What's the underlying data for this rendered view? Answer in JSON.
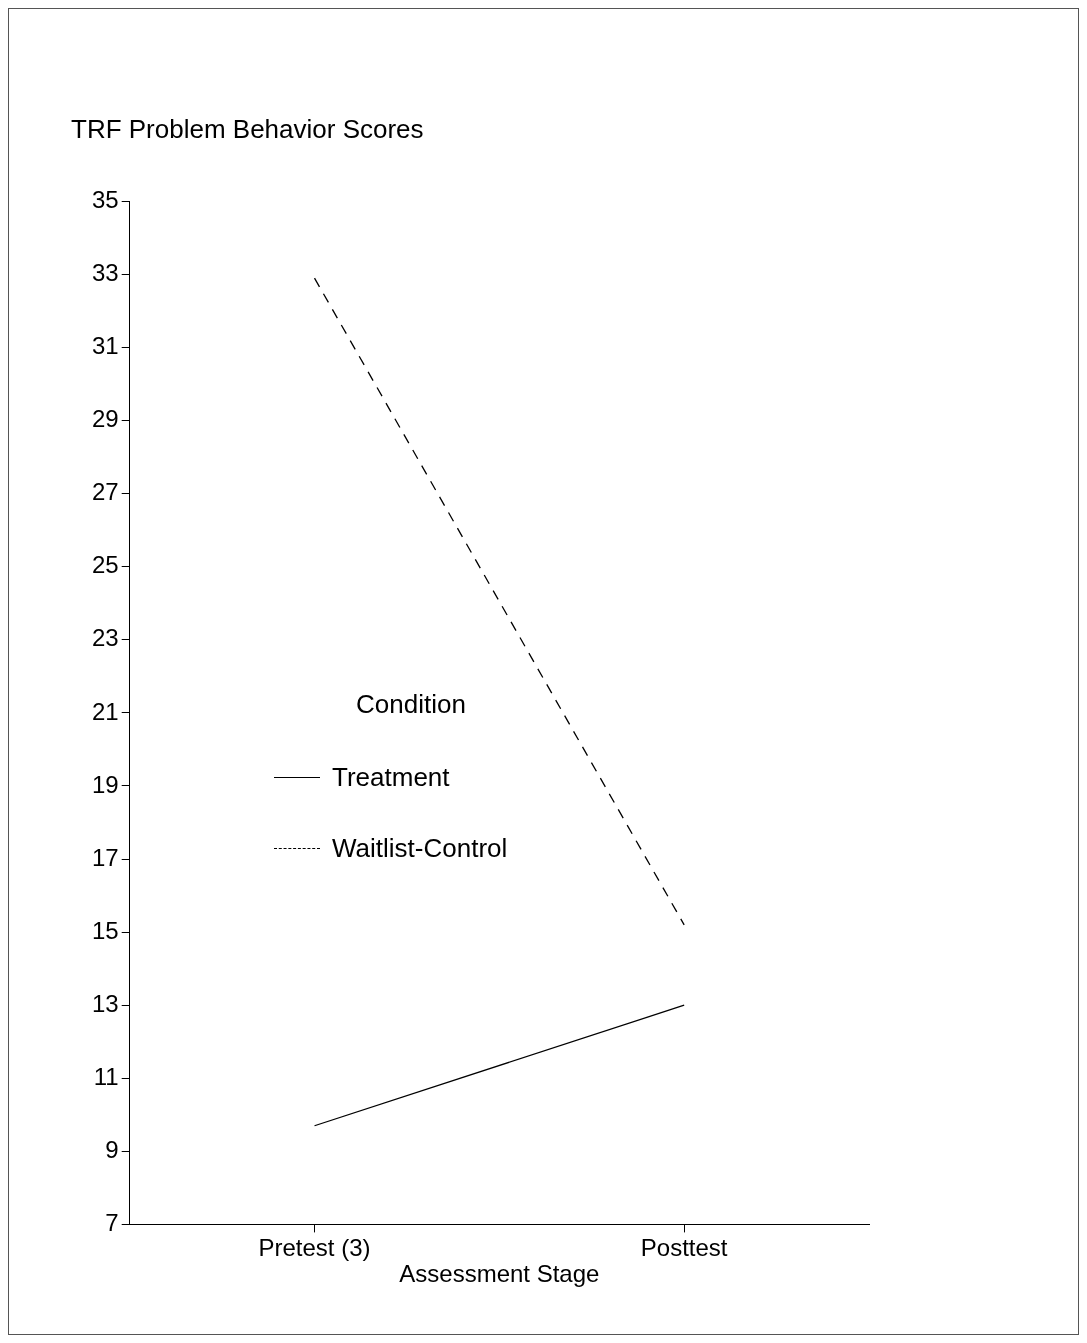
{
  "chart_data": {
    "type": "line",
    "ylabel": "TRF Problem Behavior Scores",
    "xlabel": "Assessment Stage",
    "legend_title": "Condition",
    "categories": [
      "Pretest (3)",
      "Posttest"
    ],
    "series": [
      {
        "name": "Treatment",
        "color": "#000000",
        "values": [
          9.7,
          13.0
        ],
        "line_style": "solid"
      },
      {
        "name": "Waitlist-Control",
        "color": "#000000",
        "values": [
          32.9,
          15.2
        ],
        "line_style": "dashed"
      }
    ],
    "ylim": [
      7,
      35
    ],
    "yticks": [
      7,
      9,
      11,
      13,
      15,
      17,
      19,
      21,
      23,
      25,
      27,
      29,
      31,
      33,
      35
    ],
    "grid": false,
    "legend": "left",
    "marker": "none"
  }
}
